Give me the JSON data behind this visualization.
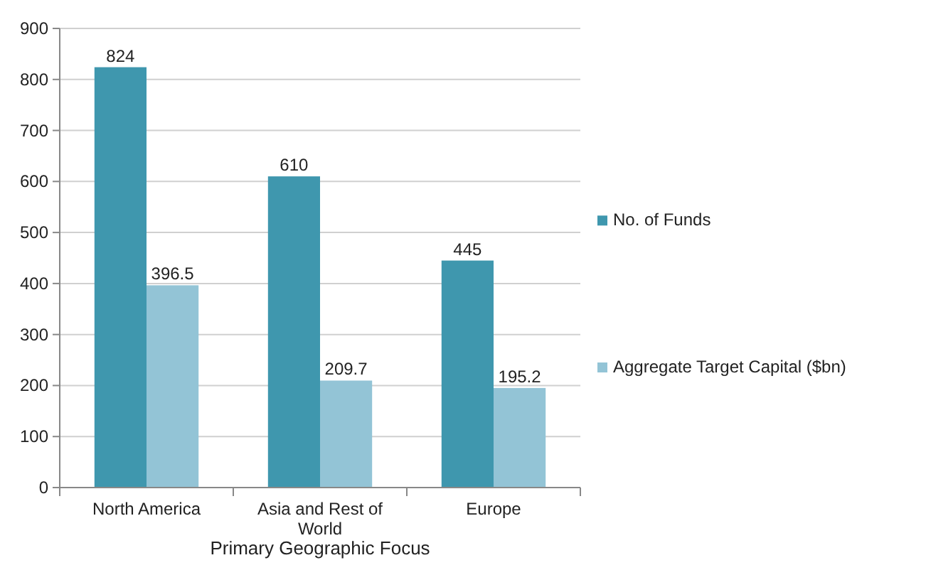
{
  "chart_data": {
    "type": "bar",
    "xlabel": "Primary Geographic Focus",
    "categories": [
      "North America",
      "Asia and Rest of World",
      "Europe"
    ],
    "series": [
      {
        "name": "No. of Funds",
        "color": "#3f97ae",
        "values": [
          824,
          610,
          445
        ]
      },
      {
        "name": "Aggregate Target Capital ($bn)",
        "color": "#93c4d6",
        "values": [
          396.5,
          209.7,
          195.2
        ]
      }
    ],
    "ylim": [
      0,
      900
    ],
    "yticks": [
      0,
      100,
      200,
      300,
      400,
      500,
      600,
      700,
      800,
      900
    ],
    "grid": "y",
    "legend": "right",
    "data_labels": true
  }
}
